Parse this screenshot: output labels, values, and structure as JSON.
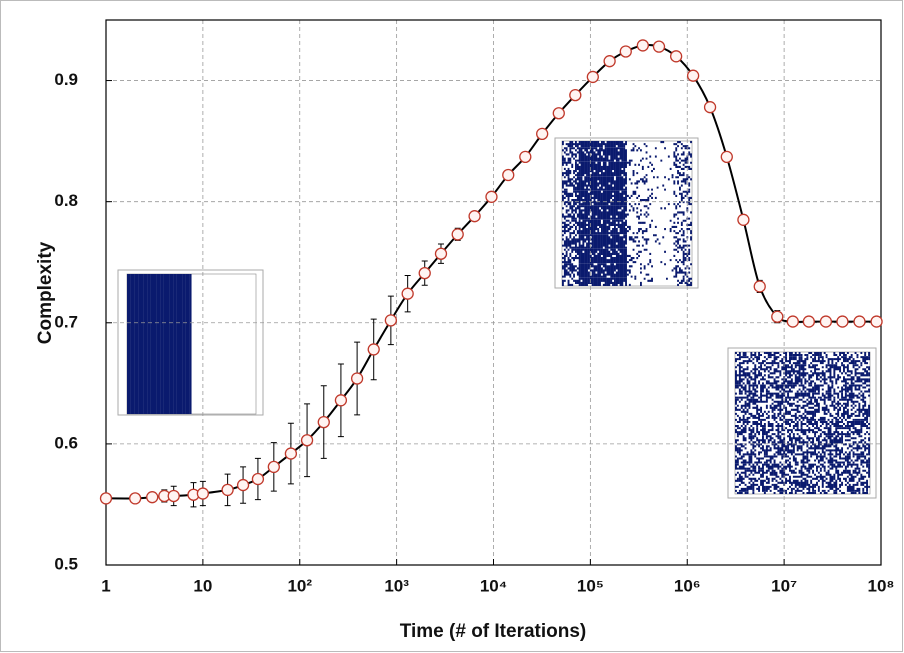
{
  "chart_data": {
    "type": "line",
    "xlabel": "Time (# of Iterations)",
    "ylabel": "Complexity",
    "xscale": "log",
    "grid": true,
    "xlim": [
      1,
      100000000
    ],
    "ylim": [
      0.5,
      0.95
    ],
    "xticks": [
      1,
      10,
      {
        "value": 100,
        "label": "10²"
      },
      {
        "value": 1000,
        "label": "10³"
      },
      {
        "value": 10000,
        "label": "10⁴"
      },
      {
        "value": 100000,
        "label": "10⁵"
      },
      {
        "value": 1000000,
        "label": "10⁶"
      },
      {
        "value": 10000000,
        "label": "10⁷"
      },
      {
        "value": 100000000,
        "label": "10⁸"
      }
    ],
    "yticks": [
      0.5,
      0.6,
      0.7,
      0.8,
      0.9
    ],
    "series": [
      {
        "color": "#000000",
        "marker_color": "#c0392b",
        "x": [
          1,
          2,
          3,
          4,
          5,
          8,
          10,
          18,
          26,
          37,
          54,
          81,
          119,
          177,
          266,
          391,
          580,
          872,
          1300,
          1950,
          2870,
          4270,
          6380,
          9530,
          14200,
          21300,
          31800,
          47200,
          69900,
          106000,
          158000,
          232000,
          348000,
          511000,
          768000,
          1150000,
          1720000,
          2560000,
          3800000,
          5600000,
          8500000,
          12300000,
          18000000,
          27000000,
          40000000,
          60000000,
          90000000
        ],
        "values": [
          0.555,
          0.555,
          0.556,
          0.557,
          0.557,
          0.558,
          0.559,
          0.562,
          0.566,
          0.571,
          0.581,
          0.592,
          0.603,
          0.618,
          0.636,
          0.654,
          0.678,
          0.702,
          0.724,
          0.741,
          0.757,
          0.773,
          0.788,
          0.804,
          0.822,
          0.837,
          0.856,
          0.873,
          0.888,
          0.903,
          0.916,
          0.924,
          0.929,
          0.928,
          0.92,
          0.904,
          0.878,
          0.837,
          0.785,
          0.73,
          0.705,
          0.701,
          0.701,
          0.701,
          0.701,
          0.701,
          0.701
        ],
        "errors": [
          0.002,
          0.002,
          0.003,
          0.005,
          0.008,
          0.01,
          0.01,
          0.013,
          0.015,
          0.017,
          0.02,
          0.025,
          0.03,
          0.03,
          0.03,
          0.03,
          0.025,
          0.02,
          0.015,
          0.01,
          0.008,
          0.005,
          0.003,
          0.003,
          0.003,
          0.003,
          0.003,
          0.003,
          0.003,
          0.003,
          0.003,
          0.003,
          0.003,
          0.003,
          0.003,
          0.003,
          0.003,
          0.003,
          0.003,
          0.005,
          0.005,
          0.003,
          0.003,
          0.003,
          0.003,
          0.003,
          0.003
        ]
      }
    ]
  }
}
